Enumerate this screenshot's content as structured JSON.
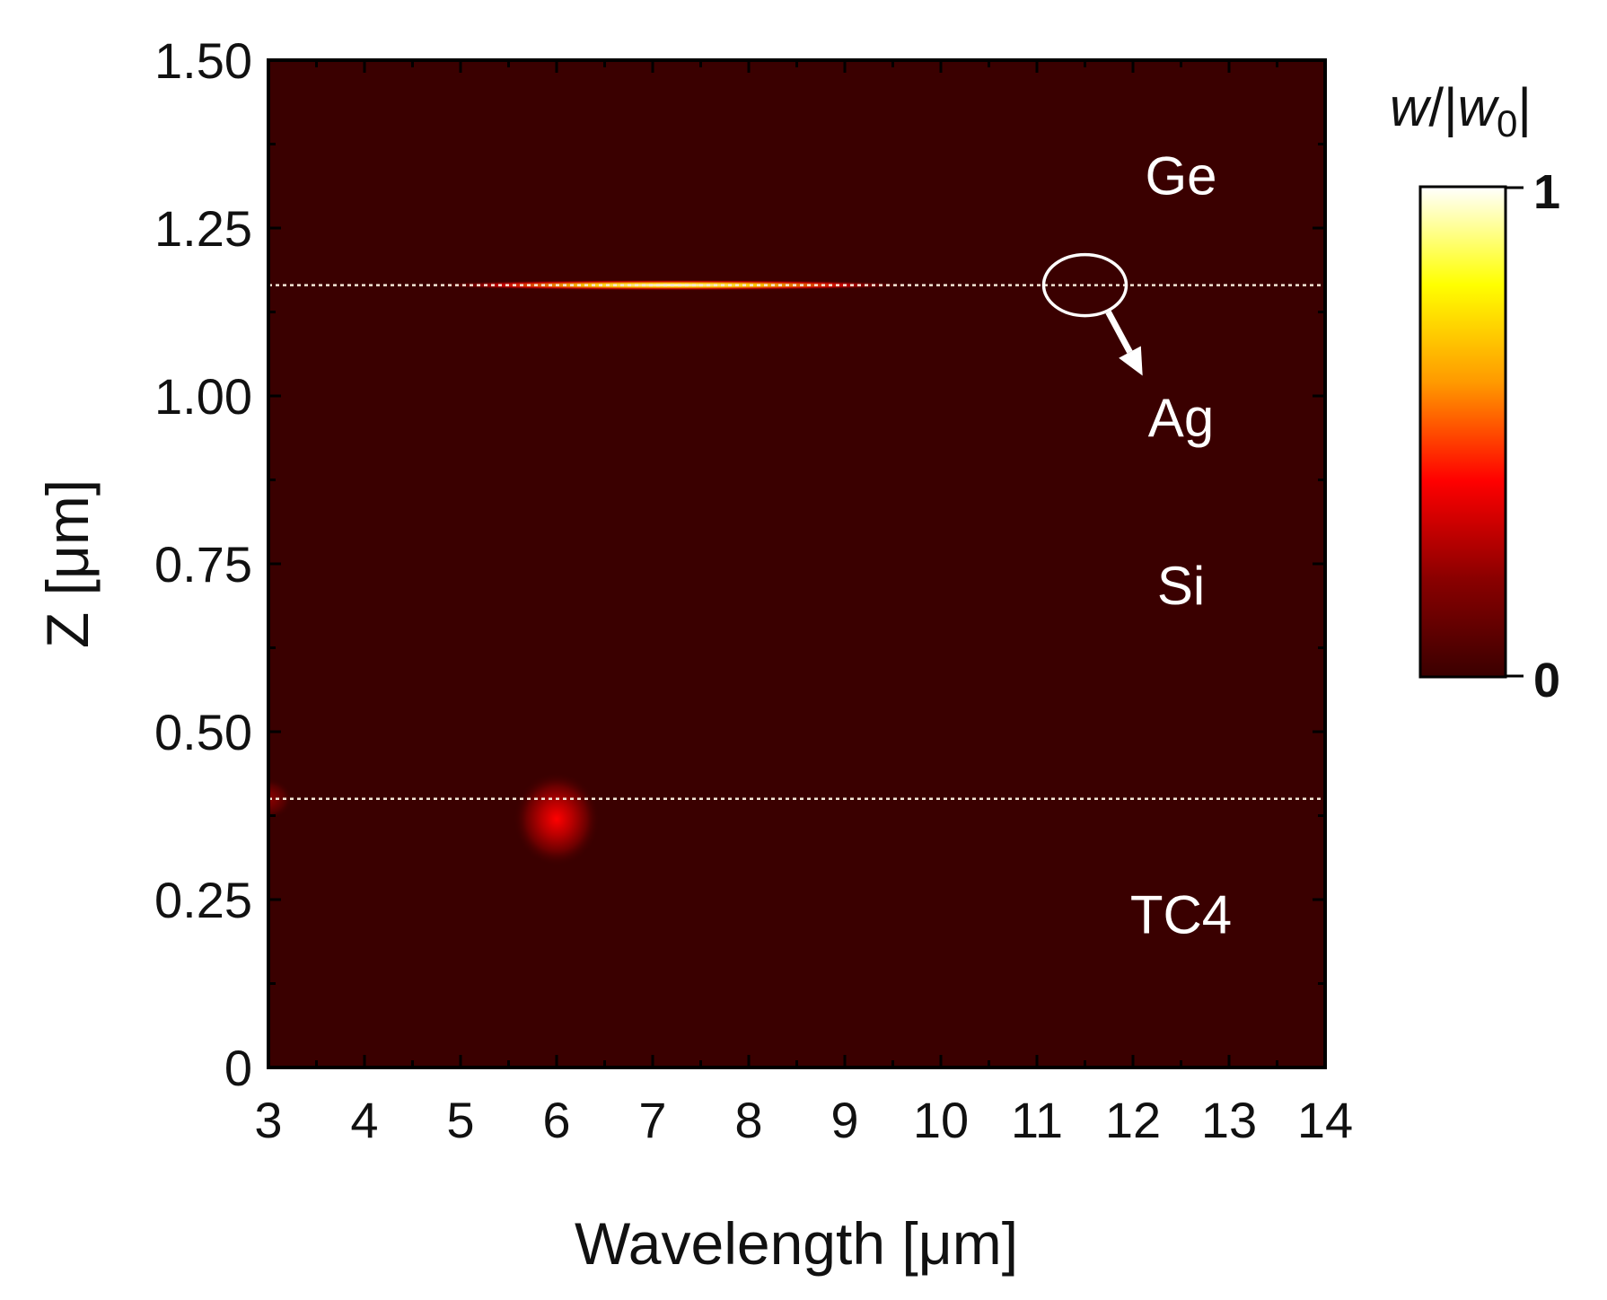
{
  "chart_data": {
    "type": "heatmap",
    "title": "",
    "xlabel": "Wavelength  [μm]",
    "ylabel": "Z [μm]",
    "xlim": [
      3,
      14
    ],
    "ylim": [
      0,
      1.5
    ],
    "x_ticks": [
      3,
      4,
      5,
      6,
      7,
      8,
      9,
      10,
      11,
      12,
      13,
      14
    ],
    "x_tick_labels": [
      "3",
      "4",
      "5",
      "6",
      "7",
      "8",
      "9",
      "10",
      "11",
      "12",
      "13",
      "14"
    ],
    "y_ticks": [
      0,
      0.25,
      0.5,
      0.75,
      1.0,
      1.25,
      1.5
    ],
    "y_tick_labels": [
      "0",
      "0.25",
      "0.50",
      "0.75",
      "1.00",
      "1.25",
      "1.50"
    ],
    "background_value": 0.0,
    "colorbar": {
      "label_italic": "w",
      "label_mid": "/|",
      "label_italic2": "w",
      "label_sub": "0",
      "label_end": "|",
      "min": 0,
      "max": 1,
      "min_label": "0",
      "max_label": "1",
      "colors": [
        "#3a0000",
        "#8a0000",
        "#ff0000",
        "#ff9900",
        "#ffff00",
        "#ffffff"
      ]
    },
    "interfaces": [
      {
        "name": "Ge/Ag interface",
        "z": 1.165
      },
      {
        "name": "Si/TC4 interface",
        "z": 0.4
      }
    ],
    "layer_labels": [
      {
        "text": "Ge",
        "x": 12.5,
        "z": 1.3
      },
      {
        "text": "Ag",
        "x": 12.5,
        "z": 0.94
      },
      {
        "text": "Si",
        "x": 12.5,
        "z": 0.69
      },
      {
        "text": "TC4",
        "x": 12.5,
        "z": 0.2
      }
    ],
    "hotspots": [
      {
        "name": "ag-layer-absorption",
        "x_center": 7.2,
        "z": 1.165,
        "x_halfwidth": 2.6,
        "z_halfwidth": 0.008,
        "peak": 1.0
      },
      {
        "name": "tc4-surface-absorption",
        "x_center": 6.0,
        "z": 0.37,
        "x_halfwidth": 0.45,
        "z_halfwidth": 0.07,
        "peak": 0.4
      },
      {
        "name": "tc4-edge-absorption",
        "x_center": 3.0,
        "z": 0.4,
        "x_halfwidth": 0.25,
        "z_halfwidth": 0.03,
        "peak": 0.2
      }
    ],
    "annotation": {
      "type": "ellipse-with-arrow",
      "x_center": 11.5,
      "z_center": 1.165,
      "arrow_to_x": 12.1,
      "arrow_to_z": 1.03
    }
  }
}
